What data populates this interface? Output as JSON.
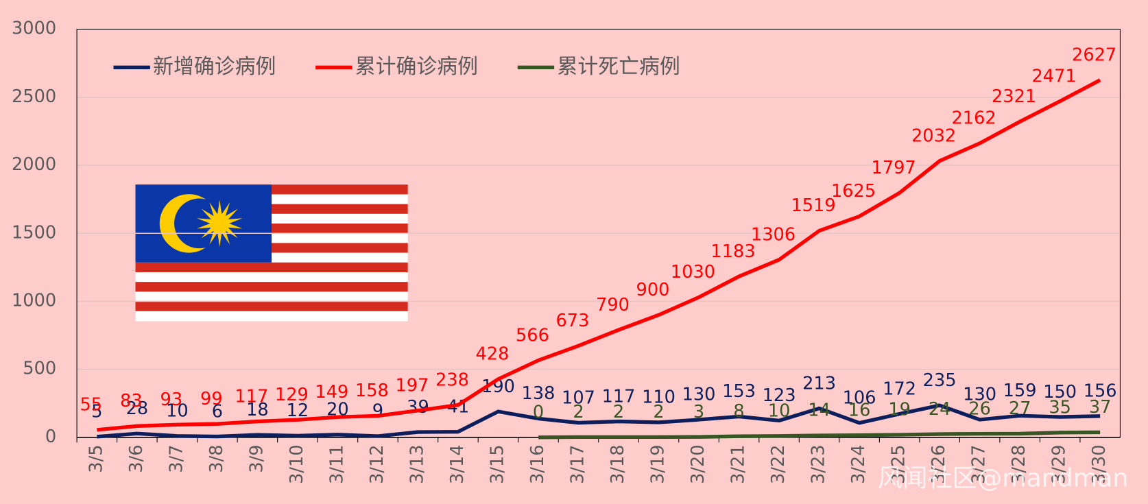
{
  "chart_data": {
    "type": "line",
    "categories": [
      "3/5",
      "3/6",
      "3/7",
      "3/8",
      "3/9",
      "3/10",
      "3/11",
      "3/12",
      "3/13",
      "3/14",
      "3/15",
      "3/16",
      "3/17",
      "3/18",
      "3/19",
      "3/20",
      "3/21",
      "3/22",
      "3/23",
      "3/24",
      "3/25",
      "3/26",
      "3/27",
      "3/28",
      "3/29",
      "3/30"
    ],
    "series": [
      {
        "name": "新增确诊病例",
        "color": "#0c1f5c",
        "values": [
          5,
          28,
          10,
          6,
          18,
          12,
          20,
          9,
          39,
          41,
          190,
          138,
          107,
          117,
          110,
          130,
          153,
          123,
          213,
          106,
          172,
          235,
          130,
          159,
          150,
          156
        ]
      },
      {
        "name": "累计确诊病例",
        "color": "#ff0000",
        "values": [
          55,
          83,
          93,
          99,
          117,
          129,
          149,
          158,
          197,
          238,
          428,
          566,
          673,
          790,
          900,
          1030,
          1183,
          1306,
          1519,
          1625,
          1797,
          2032,
          2162,
          2321,
          2471,
          2627
        ]
      },
      {
        "name": "累计死亡病例",
        "color": "#375623",
        "values": [
          null,
          null,
          null,
          null,
          null,
          null,
          null,
          null,
          null,
          null,
          null,
          0,
          2,
          2,
          2,
          3,
          8,
          10,
          14,
          16,
          19,
          24,
          26,
          27,
          35,
          37
        ]
      }
    ],
    "ylim": [
      0,
      3000
    ],
    "yticks": [
      0,
      500,
      1000,
      1500,
      2000,
      2500,
      3000
    ],
    "grid": true,
    "legend": "top-left",
    "watermark": "风闻社区@mandman"
  }
}
